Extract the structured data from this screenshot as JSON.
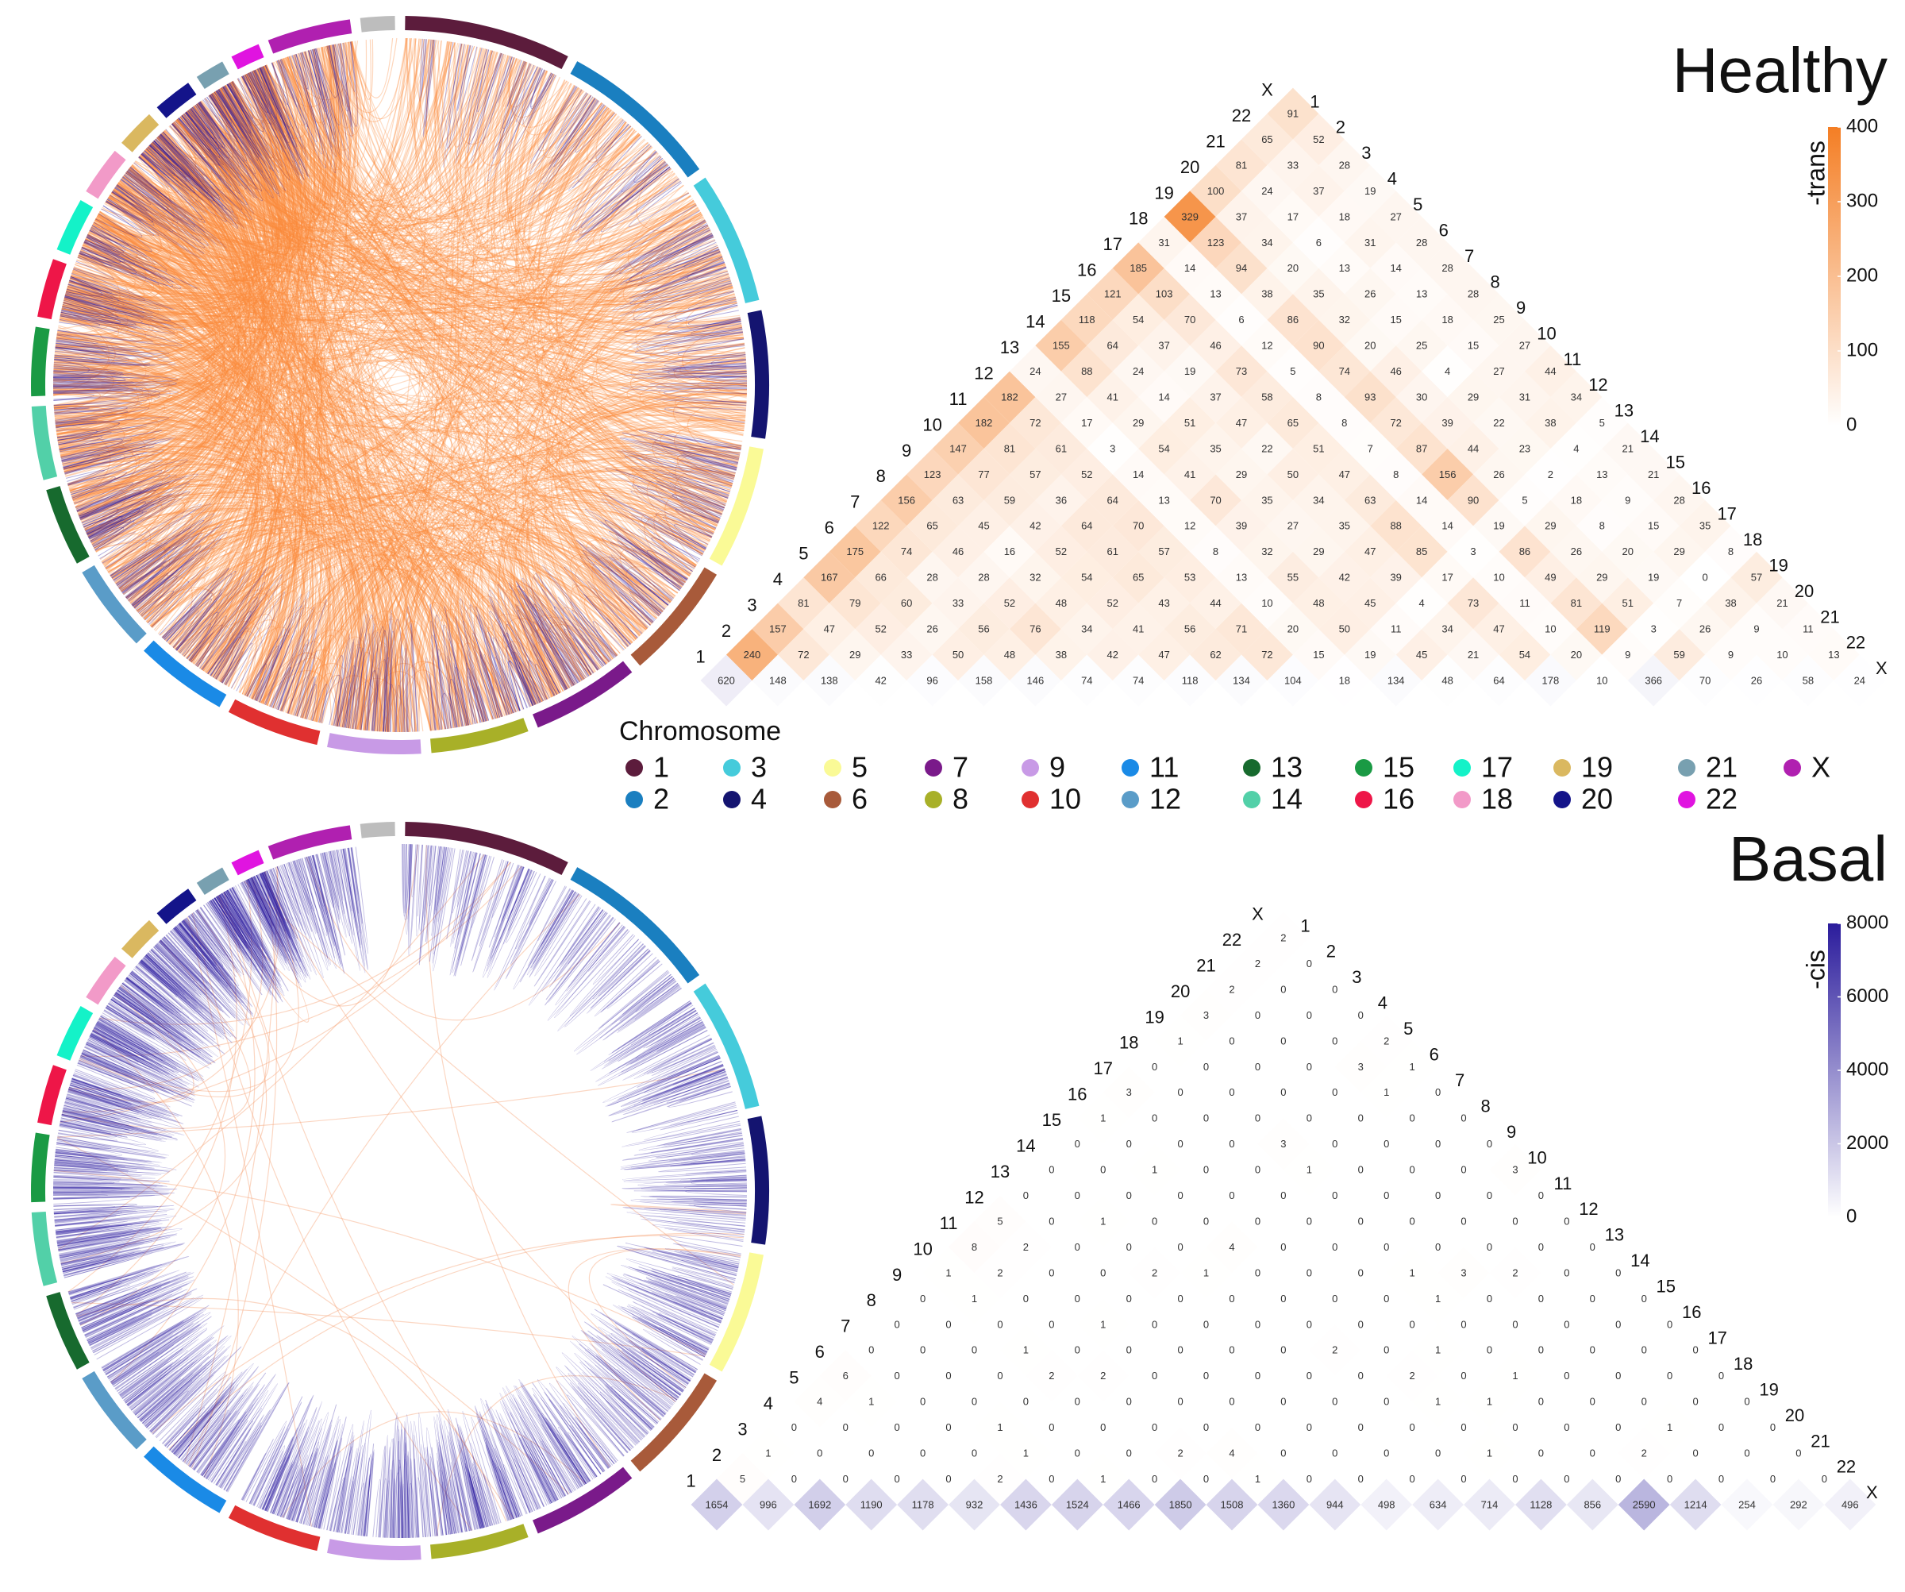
{
  "legend": {
    "title": "Chromosome",
    "items": [
      {
        "name": "1",
        "color": "#5c1c3c"
      },
      {
        "name": "2",
        "color": "#1a7fc0"
      },
      {
        "name": "3",
        "color": "#45cbdb"
      },
      {
        "name": "4",
        "color": "#141470"
      },
      {
        "name": "5",
        "color": "#fafa96"
      },
      {
        "name": "6",
        "color": "#a85a3a"
      },
      {
        "name": "7",
        "color": "#7a1a8a"
      },
      {
        "name": "8",
        "color": "#a8b028"
      },
      {
        "name": "9",
        "color": "#c89ae6"
      },
      {
        "name": "10",
        "color": "#e03030"
      },
      {
        "name": "11",
        "color": "#1a8ae6"
      },
      {
        "name": "12",
        "color": "#5a9cc8"
      },
      {
        "name": "13",
        "color": "#176a2e"
      },
      {
        "name": "14",
        "color": "#52d0a8"
      },
      {
        "name": "15",
        "color": "#1a9a44"
      },
      {
        "name": "16",
        "color": "#ee1648"
      },
      {
        "name": "17",
        "color": "#14f2c8"
      },
      {
        "name": "18",
        "color": "#f29ac8"
      },
      {
        "name": "19",
        "color": "#dab860"
      },
      {
        "name": "20",
        "color": "#14148a"
      },
      {
        "name": "21",
        "color": "#78a0b0"
      },
      {
        "name": "22",
        "color": "#e014e0"
      },
      {
        "name": "X",
        "color": "#b020b0"
      }
    ]
  },
  "chart_data": [
    {
      "type": "triangle-heatmap",
      "title": "Healthy",
      "labels": [
        "1",
        "2",
        "3",
        "4",
        "5",
        "6",
        "7",
        "8",
        "9",
        "10",
        "11",
        "12",
        "13",
        "14",
        "15",
        "16",
        "17",
        "18",
        "19",
        "20",
        "21",
        "22",
        "X"
      ],
      "values": [
        [
          620,
          148,
          138,
          42,
          96,
          158,
          146,
          74,
          74,
          118,
          134,
          104,
          18,
          134,
          48,
          64,
          178,
          10,
          366,
          70,
          26,
          58,
          24
        ],
        [
          240,
          72,
          29,
          33,
          50,
          48,
          38,
          42,
          47,
          62,
          72,
          15,
          19,
          45,
          21,
          54,
          20,
          9,
          59,
          9,
          10,
          13
        ],
        [
          157,
          47,
          52,
          26,
          56,
          76,
          34,
          41,
          56,
          71,
          20,
          50,
          11,
          34,
          47,
          10,
          119,
          3,
          26,
          9,
          11
        ],
        [
          81,
          79,
          60,
          33,
          52,
          48,
          52,
          43,
          44,
          10,
          48,
          45,
          4,
          73,
          11,
          81,
          51,
          7,
          38,
          21
        ],
        [
          167,
          66,
          28,
          28,
          32,
          54,
          65,
          53,
          13,
          55,
          42,
          39,
          17,
          10,
          49,
          29,
          19,
          0,
          57
        ],
        [
          175,
          74,
          46,
          16,
          52,
          61,
          57,
          8,
          32,
          29,
          47,
          85,
          3,
          86,
          26,
          20,
          29,
          8
        ],
        [
          122,
          65,
          45,
          42,
          64,
          70,
          12,
          39,
          27,
          35,
          88,
          14,
          19,
          29,
          8,
          15,
          35
        ],
        [
          156,
          63,
          59,
          36,
          64,
          13,
          70,
          35,
          34,
          63,
          14,
          90,
          5,
          18,
          9,
          28
        ],
        [
          123,
          77,
          57,
          52,
          14,
          41,
          29,
          50,
          47,
          8,
          156,
          26,
          2,
          13,
          21
        ],
        [
          147,
          81,
          61,
          3,
          54,
          35,
          22,
          51,
          7,
          87,
          44,
          23,
          4,
          21
        ],
        [
          182,
          72,
          17,
          29,
          51,
          47,
          65,
          8,
          72,
          39,
          22,
          38,
          5
        ],
        [
          182,
          27,
          41,
          14,
          37,
          58,
          8,
          93,
          30,
          29,
          31,
          34
        ],
        [
          24,
          88,
          24,
          19,
          73,
          5,
          74,
          46,
          4,
          27,
          44
        ],
        [
          155,
          64,
          37,
          46,
          12,
          90,
          20,
          25,
          15,
          27
        ],
        [
          118,
          54,
          70,
          6,
          86,
          32,
          15,
          18,
          25
        ],
        [
          121,
          103,
          13,
          38,
          35,
          26,
          13,
          28
        ],
        [
          185,
          14,
          94,
          20,
          13,
          14,
          28
        ],
        [
          31,
          123,
          34,
          6,
          31,
          28
        ],
        [
          329,
          37,
          17,
          18,
          27
        ],
        [
          100,
          24,
          37,
          19
        ],
        [
          81,
          33,
          28
        ],
        [
          65,
          52
        ],
        [
          91
        ]
      ],
      "colorbar": {
        "label": "-trans",
        "lim": [
          0,
          400
        ],
        "ticks": [
          0,
          100,
          200,
          300,
          400
        ],
        "colors": [
          "#ffffff",
          "#f47e24"
        ]
      }
    },
    {
      "type": "triangle-heatmap",
      "title": "Basal",
      "labels": [
        "1",
        "2",
        "3",
        "4",
        "5",
        "6",
        "7",
        "8",
        "9",
        "10",
        "11",
        "12",
        "13",
        "14",
        "15",
        "16",
        "17",
        "18",
        "19",
        "20",
        "21",
        "22",
        "X"
      ],
      "values": [
        [
          1654,
          996,
          1692,
          1190,
          1178,
          932,
          1436,
          1524,
          1466,
          1850,
          1508,
          1360,
          944,
          498,
          634,
          714,
          1128,
          856,
          2590,
          1214,
          254,
          292,
          496
        ],
        [
          5,
          0,
          0,
          0,
          0,
          2,
          0,
          1,
          0,
          0,
          1,
          0,
          0,
          0,
          0,
          0,
          0,
          0,
          0,
          0,
          0,
          0
        ],
        [
          1,
          0,
          0,
          0,
          0,
          1,
          0,
          0,
          2,
          4,
          0,
          0,
          0,
          0,
          1,
          0,
          0,
          2,
          0,
          0,
          0
        ],
        [
          0,
          0,
          0,
          0,
          1,
          0,
          0,
          0,
          0,
          0,
          0,
          0,
          0,
          0,
          0,
          0,
          0,
          1,
          0,
          0
        ],
        [
          4,
          1,
          0,
          0,
          0,
          0,
          0,
          0,
          0,
          0,
          0,
          0,
          1,
          1,
          0,
          0,
          0,
          0,
          0
        ],
        [
          6,
          0,
          0,
          0,
          2,
          2,
          0,
          0,
          0,
          0,
          0,
          2,
          0,
          1,
          0,
          0,
          0,
          0
        ],
        [
          0,
          0,
          0,
          1,
          0,
          0,
          0,
          0,
          0,
          2,
          0,
          1,
          0,
          0,
          0,
          0,
          0
        ],
        [
          0,
          0,
          0,
          0,
          1,
          0,
          0,
          0,
          0,
          0,
          0,
          0,
          0,
          0,
          0,
          0
        ],
        [
          0,
          1,
          0,
          0,
          0,
          0,
          0,
          0,
          0,
          0,
          1,
          0,
          0,
          0,
          0
        ],
        [
          1,
          2,
          0,
          0,
          2,
          1,
          0,
          0,
          0,
          1,
          3,
          2,
          0,
          0
        ],
        [
          8,
          2,
          0,
          0,
          0,
          4,
          0,
          0,
          0,
          0,
          0,
          0,
          0
        ],
        [
          5,
          0,
          1,
          0,
          0,
          0,
          0,
          0,
          0,
          0,
          0,
          0
        ],
        [
          0,
          0,
          0,
          0,
          0,
          0,
          0,
          0,
          0,
          0,
          0
        ],
        [
          0,
          0,
          1,
          0,
          0,
          1,
          0,
          0,
          0,
          3
        ],
        [
          0,
          0,
          0,
          0,
          3,
          0,
          0,
          0,
          0
        ],
        [
          1,
          0,
          0,
          0,
          0,
          0,
          0,
          0
        ],
        [
          3,
          0,
          0,
          0,
          0,
          1,
          0
        ],
        [
          0,
          0,
          0,
          0,
          3,
          1
        ],
        [
          1,
          0,
          0,
          0,
          2
        ],
        [
          3,
          0,
          0,
          0
        ],
        [
          2,
          0,
          0
        ],
        [
          2,
          0
        ],
        [
          2
        ]
      ],
      "colorbar": {
        "label": "-cis",
        "lim": [
          0,
          8000
        ],
        "ticks": [
          0,
          2000,
          4000,
          6000,
          8000
        ],
        "colors": [
          "#ffffff",
          "#2b1c9c"
        ]
      }
    }
  ]
}
